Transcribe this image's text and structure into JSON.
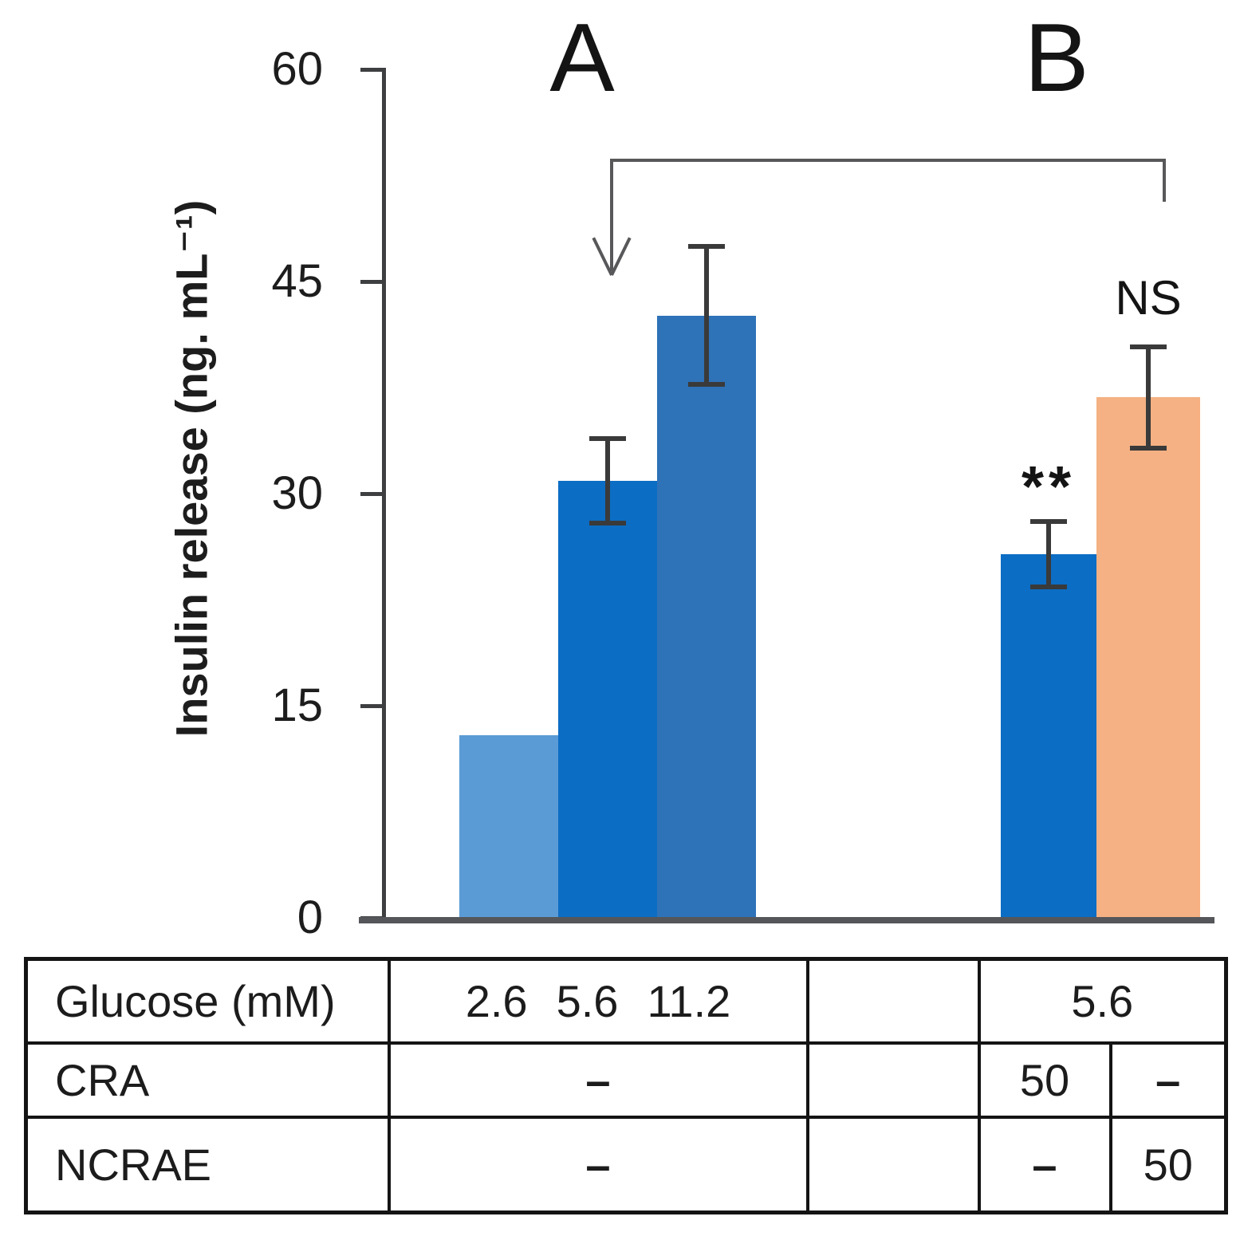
{
  "chart_data": {
    "type": "bar",
    "title": "",
    "ylabel": "Insulin release (ng. mL⁻¹)",
    "ylim": [
      0,
      60
    ],
    "yticks": [
      0,
      15,
      30,
      45,
      60
    ],
    "grid": false,
    "legend": "none",
    "groups": [
      {
        "label": "A"
      },
      {
        "label": "B"
      }
    ],
    "bars": [
      {
        "group": "A",
        "condition": "Glucose 2.6",
        "value": 12.9,
        "error": 0,
        "color": "#5b9bd5",
        "annotation": ""
      },
      {
        "group": "A",
        "condition": "Glucose 5.6",
        "value": 30.9,
        "error": 3.0,
        "color": "#0c6dc4",
        "annotation": ""
      },
      {
        "group": "A",
        "condition": "Glucose 11.2",
        "value": 42.6,
        "error": 4.9,
        "color": "#2e72b8",
        "annotation": ""
      },
      {
        "group": "B",
        "condition": "Glucose 5.6 + CRA 50",
        "value": 25.7,
        "error": 2.3,
        "color": "#0c6dc4",
        "annotation": "**"
      },
      {
        "group": "B",
        "condition": "Glucose 5.6 + NCRAE 50",
        "value": 36.8,
        "error": 3.6,
        "color": "#f5b183",
        "annotation": "NS"
      }
    ],
    "comparison_bracket": {
      "from_group": "A",
      "to_group": "B",
      "style": "down-arrow-at-A"
    }
  },
  "table": {
    "row_labels": [
      "Glucose (mM)",
      "CRA",
      "NCRAE"
    ],
    "glucose_a_values": [
      "2.6",
      "5.6",
      "11.2"
    ],
    "glucose_b_value": "5.6",
    "cra_a": "–",
    "cra_b_under_cra_bar": "50",
    "cra_b_under_ncrae_bar": "–",
    "ncrae_a": "–",
    "ncrae_b_under_cra_bar": "–",
    "ncrae_b_under_ncrae_bar": "50"
  },
  "colors": {
    "axis": "#3d3f41",
    "baseline": "#55565a",
    "bracket": "#58585a",
    "error_bar": "#3a3a3a",
    "table_border": "#141414",
    "text": "#1d1d1d",
    "bar_light_blue": "#5b9bd5",
    "bar_blue": "#0c6dc4",
    "bar_medium_blue": "#2e72b8",
    "bar_orange": "#f5b183"
  }
}
